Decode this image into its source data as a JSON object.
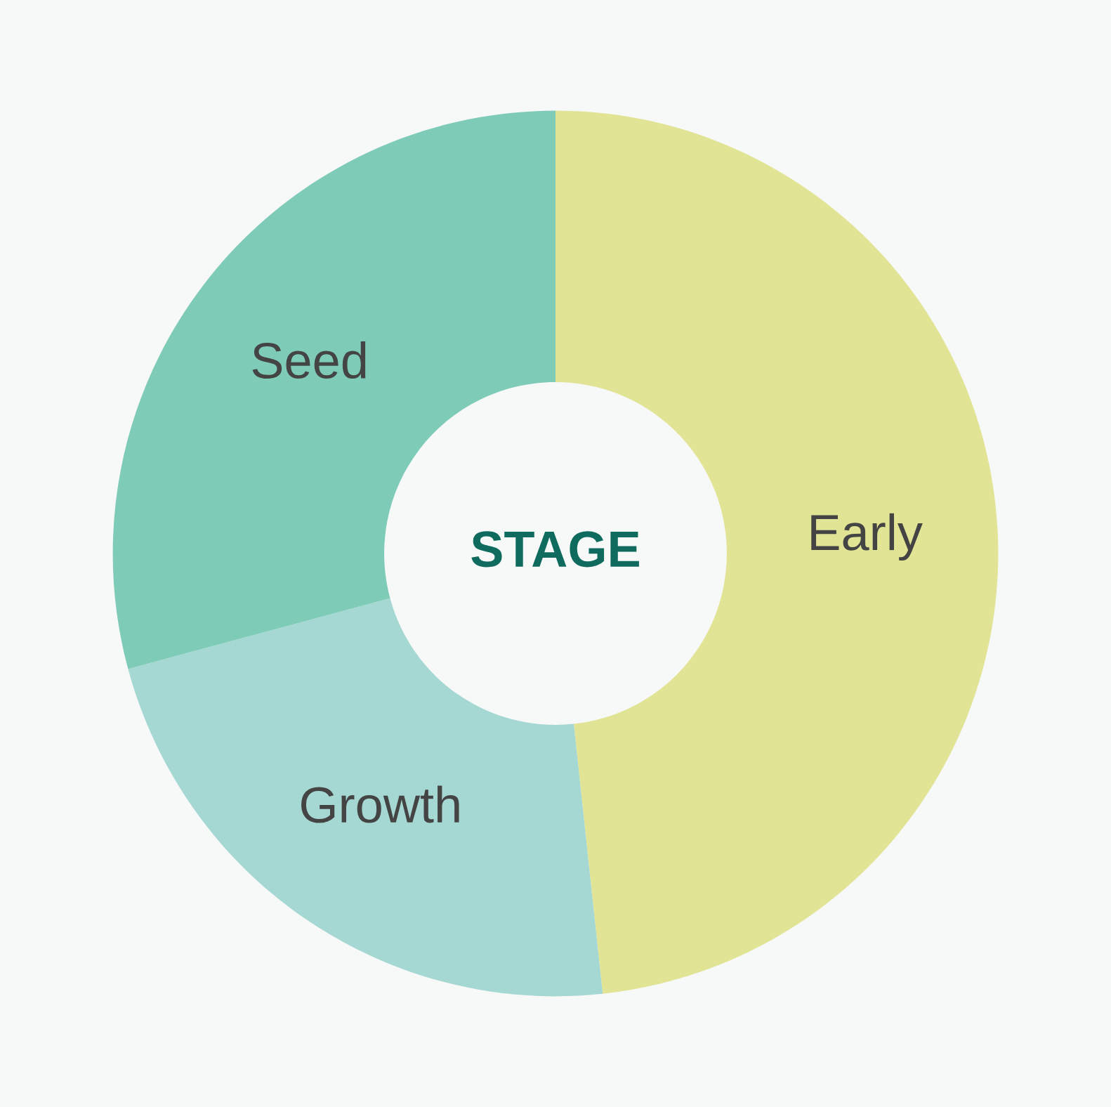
{
  "chart_data": {
    "type": "donut",
    "title": "STAGE",
    "categories": [
      "Early",
      "Growth",
      "Seed"
    ],
    "values": [
      48.3,
      22.5,
      29.2
    ],
    "colors": [
      "#e1e494",
      "#a5d8d3",
      "#7ecbb8"
    ]
  }
}
